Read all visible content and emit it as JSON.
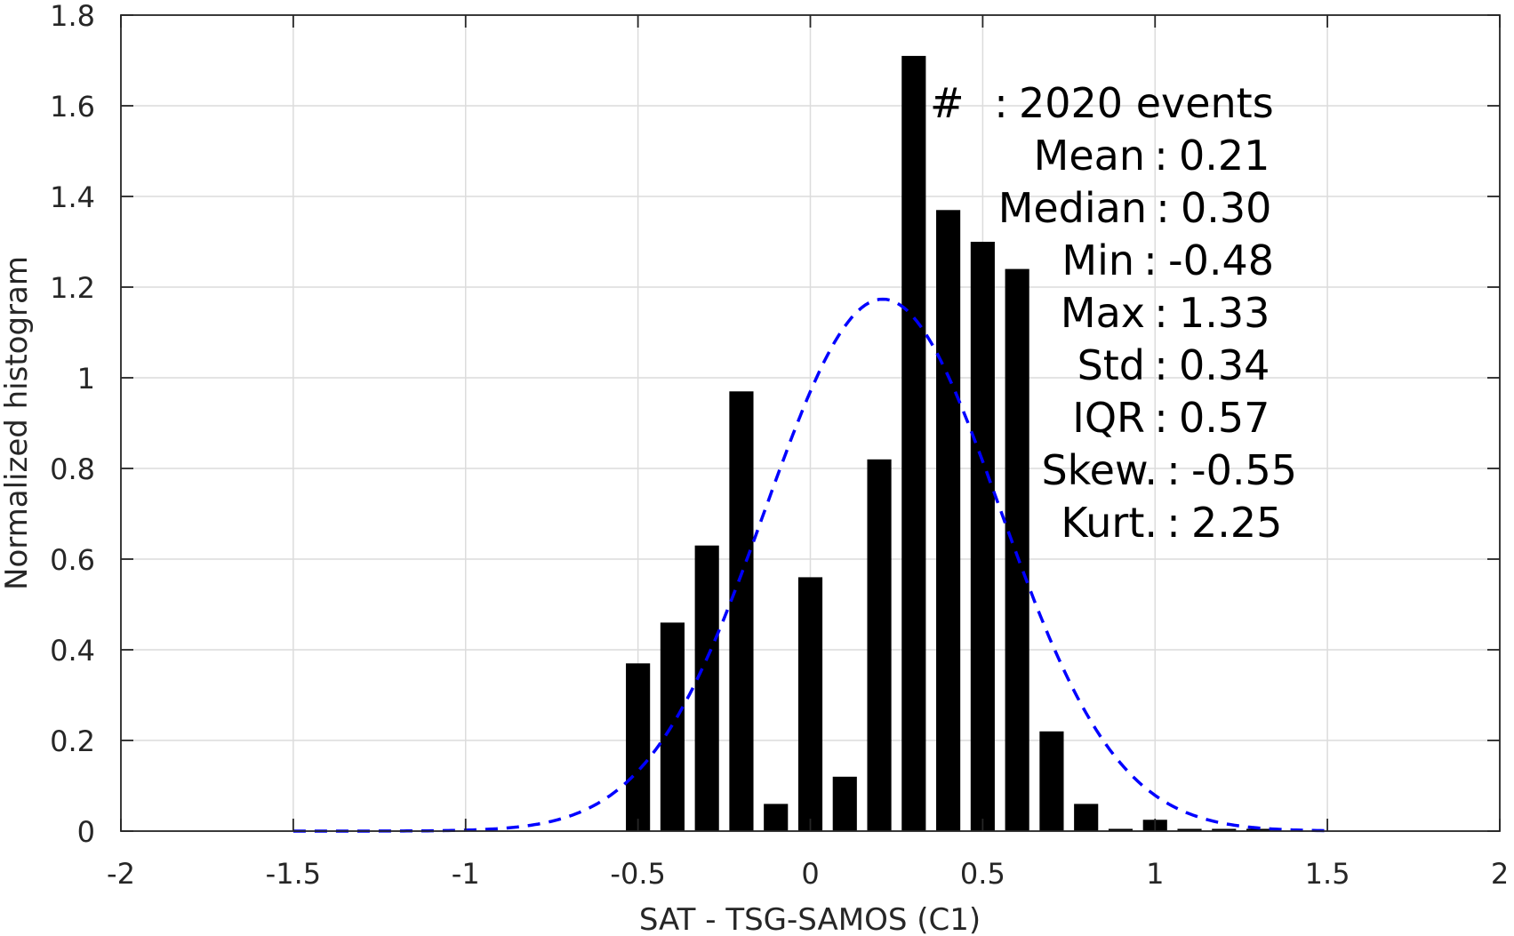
{
  "chart_data": {
    "type": "bar",
    "title": "",
    "xlabel": "SAT - TSG-SAMOS (C1)",
    "ylabel": "Normalized histogram",
    "xlim": [
      -2,
      2
    ],
    "ylim": [
      0,
      1.8
    ],
    "xticks": [
      -2,
      -1.5,
      -1,
      -0.5,
      0,
      0.5,
      1,
      1.5,
      2
    ],
    "xtick_labels": [
      "-2",
      "-1.5",
      "-1",
      "-0.5",
      "0",
      "0.5",
      "1",
      "1.5",
      "2"
    ],
    "yticks": [
      0,
      0.2,
      0.4,
      0.6,
      0.8,
      1,
      1.2,
      1.4,
      1.6,
      1.8
    ],
    "ytick_labels": [
      "0",
      "0.2",
      "0.4",
      "0.6",
      "0.8",
      "1",
      "1.2",
      "1.4",
      "1.6",
      "1.8"
    ],
    "grid": true,
    "bin_width": 0.1,
    "bar_color": "#000000",
    "bars": {
      "x": [
        -0.5,
        -0.4,
        -0.3,
        -0.2,
        -0.1,
        0.0,
        0.1,
        0.2,
        0.3,
        0.4,
        0.5,
        0.6,
        0.7,
        0.8,
        0.9,
        1.0,
        1.1,
        1.2,
        1.3
      ],
      "values": [
        0.37,
        0.46,
        0.63,
        0.97,
        0.06,
        0.56,
        0.12,
        0.82,
        1.71,
        1.37,
        1.3,
        1.24,
        0.22,
        0.06,
        0.005,
        0.025,
        0.005,
        0.005,
        0.005
      ]
    },
    "fit_curve": {
      "style": "dashed",
      "color": "#0000ff",
      "mean": 0.21,
      "std": 0.34,
      "x_range": [
        -1.5,
        1.5
      ]
    },
    "stats": [
      {
        "label": "#",
        "sep": ":",
        "value": "2020 events"
      },
      {
        "label": "Mean",
        "sep": ":",
        "value": "0.21"
      },
      {
        "label": "Median",
        "sep": ":",
        "value": "0.30"
      },
      {
        "label": "Min",
        "sep": ":",
        "value": "-0.48"
      },
      {
        "label": "Max",
        "sep": ":",
        "value": "1.33"
      },
      {
        "label": "Std",
        "sep": ":",
        "value": "0.34"
      },
      {
        "label": "IQR",
        "sep": ":",
        "value": "0.57"
      },
      {
        "label": "Skew.",
        "sep": ":",
        "value": "-0.55"
      },
      {
        "label": "Kurt.",
        "sep": ":",
        "value": "2.25"
      }
    ]
  }
}
